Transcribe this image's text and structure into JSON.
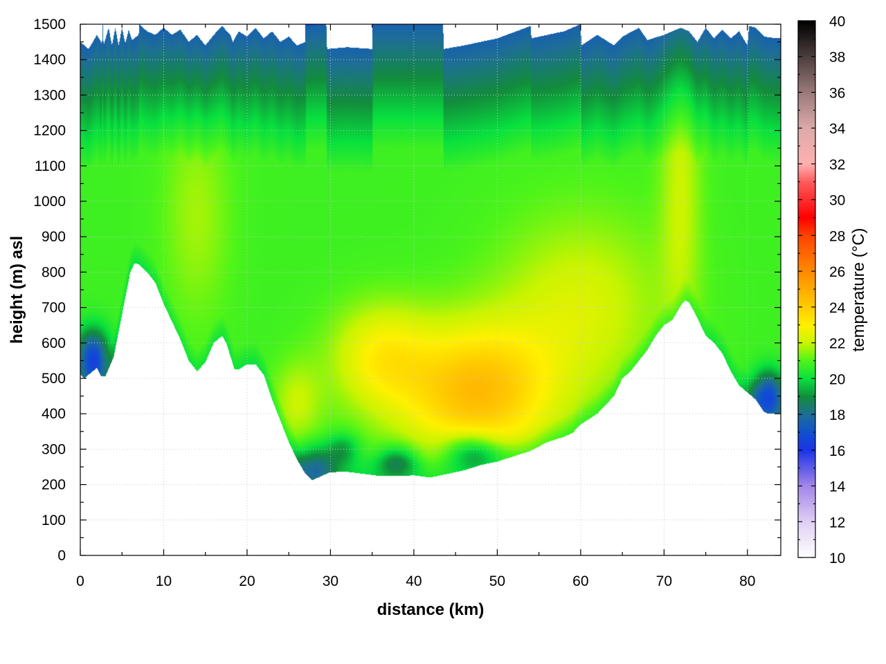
{
  "chart_data": {
    "type": "heatmap",
    "xlabel": "distance (km)",
    "ylabel": "height (m) asl",
    "colorbar_label": "temperature (°C)",
    "xlim": [
      0,
      84
    ],
    "ylim": [
      0,
      1500
    ],
    "x_ticks": [
      0,
      10,
      20,
      30,
      40,
      50,
      60,
      70,
      80
    ],
    "y_ticks": [
      0,
      100,
      200,
      300,
      400,
      500,
      600,
      700,
      800,
      900,
      1000,
      1100,
      1200,
      1300,
      1400,
      1500
    ],
    "colorbar_range": [
      10,
      40
    ],
    "colorbar_ticks": [
      10,
      12,
      14,
      16,
      18,
      20,
      22,
      24,
      26,
      28,
      30,
      32,
      34,
      36,
      38,
      40
    ],
    "colormap": [
      {
        "t": 10,
        "color": "#ffffff"
      },
      {
        "t": 12,
        "color": "#e0d0f4"
      },
      {
        "t": 14,
        "color": "#a486e8"
      },
      {
        "t": 16,
        "color": "#1c34e6"
      },
      {
        "t": 17,
        "color": "#1050d0"
      },
      {
        "t": 18,
        "color": "#1e6e96"
      },
      {
        "t": 19,
        "color": "#128c3c"
      },
      {
        "t": 20,
        "color": "#08e03e"
      },
      {
        "t": 21,
        "color": "#4cf41a"
      },
      {
        "t": 22,
        "color": "#c8f400"
      },
      {
        "t": 23,
        "color": "#fff000"
      },
      {
        "t": 24,
        "color": "#ffcc00"
      },
      {
        "t": 26,
        "color": "#ff8a00"
      },
      {
        "t": 28,
        "color": "#ff4400"
      },
      {
        "t": 29,
        "color": "#ff0000"
      },
      {
        "t": 31,
        "color": "#ff5a5a"
      },
      {
        "t": 32,
        "color": "#ffb0b0"
      },
      {
        "t": 34,
        "color": "#ddaaaa"
      },
      {
        "t": 36,
        "color": "#9a7a7a"
      },
      {
        "t": 38,
        "color": "#4e3e3e"
      },
      {
        "t": 40,
        "color": "#000000"
      }
    ],
    "terrain": [
      [
        0,
        510
      ],
      [
        0.5,
        500
      ],
      [
        1,
        510
      ],
      [
        2,
        530
      ],
      [
        2.5,
        505
      ],
      [
        3,
        505
      ],
      [
        4,
        560
      ],
      [
        5,
        680
      ],
      [
        6,
        800
      ],
      [
        6.5,
        825
      ],
      [
        7,
        822
      ],
      [
        8,
        800
      ],
      [
        9,
        770
      ],
      [
        10,
        710
      ],
      [
        11,
        660
      ],
      [
        12,
        610
      ],
      [
        13,
        550
      ],
      [
        14,
        520
      ],
      [
        15,
        545
      ],
      [
        16,
        600
      ],
      [
        17,
        620
      ],
      [
        17.5,
        600
      ],
      [
        18.5,
        525
      ],
      [
        19,
        525
      ],
      [
        20,
        540
      ],
      [
        21,
        540
      ],
      [
        22,
        510
      ],
      [
        23,
        440
      ],
      [
        24,
        380
      ],
      [
        25,
        320
      ],
      [
        26,
        270
      ],
      [
        27,
        230
      ],
      [
        27.8,
        212
      ],
      [
        29,
        225
      ],
      [
        30,
        235
      ],
      [
        32,
        236
      ],
      [
        34,
        230
      ],
      [
        36,
        224
      ],
      [
        38,
        224
      ],
      [
        40,
        226
      ],
      [
        42,
        220
      ],
      [
        44,
        230
      ],
      [
        46,
        240
      ],
      [
        48,
        255
      ],
      [
        50,
        265
      ],
      [
        52,
        280
      ],
      [
        54,
        295
      ],
      [
        56,
        320
      ],
      [
        58,
        335
      ],
      [
        59,
        345
      ],
      [
        60,
        370
      ],
      [
        62,
        400
      ],
      [
        64,
        450
      ],
      [
        65,
        500
      ],
      [
        66,
        520
      ],
      [
        68,
        580
      ],
      [
        69,
        620
      ],
      [
        70,
        650
      ],
      [
        71,
        665
      ],
      [
        72,
        705
      ],
      [
        72.5,
        720
      ],
      [
        73,
        715
      ],
      [
        74,
        670
      ],
      [
        75,
        620
      ],
      [
        76,
        600
      ],
      [
        77,
        570
      ],
      [
        78,
        520
      ],
      [
        79,
        480
      ],
      [
        80,
        460
      ],
      [
        81,
        440
      ],
      [
        82,
        405
      ],
      [
        82.5,
        400
      ],
      [
        83.5,
        400
      ]
    ],
    "top_boundary": [
      [
        0,
        1450
      ],
      [
        1,
        1430
      ],
      [
        2,
        1470
      ],
      [
        2.6,
        1445
      ],
      [
        2.7,
        1500
      ],
      [
        2.8,
        1440
      ],
      [
        3.4,
        1490
      ],
      [
        3.8,
        1440
      ],
      [
        4.2,
        1490
      ],
      [
        4.6,
        1440
      ],
      [
        5,
        1490
      ],
      [
        5.4,
        1445
      ],
      [
        5.8,
        1485
      ],
      [
        6.2,
        1455
      ],
      [
        7,
        1470
      ],
      [
        7.1,
        1500
      ],
      [
        8,
        1480
      ],
      [
        9,
        1470
      ],
      [
        10,
        1490
      ],
      [
        11,
        1470
      ],
      [
        12,
        1485
      ],
      [
        13,
        1450
      ],
      [
        14,
        1470
      ],
      [
        15,
        1440
      ],
      [
        16,
        1470
      ],
      [
        17,
        1495
      ],
      [
        18,
        1470
      ],
      [
        18.3,
        1450
      ],
      [
        19,
        1480
      ],
      [
        20,
        1465
      ],
      [
        21,
        1490
      ],
      [
        22,
        1460
      ],
      [
        23,
        1480
      ],
      [
        24,
        1450
      ],
      [
        25,
        1465
      ],
      [
        26,
        1440
      ],
      [
        27,
        1450
      ],
      [
        27.1,
        1495
      ],
      [
        29.5,
        1500
      ],
      [
        29.6,
        1430
      ],
      [
        32,
        1435
      ],
      [
        35,
        1430
      ],
      [
        35.1,
        1500
      ],
      [
        43.5,
        1500
      ],
      [
        43.6,
        1430
      ],
      [
        46,
        1440
      ],
      [
        50,
        1460
      ],
      [
        54,
        1495
      ],
      [
        54.1,
        1460
      ],
      [
        58,
        1480
      ],
      [
        60,
        1500
      ],
      [
        60.1,
        1440
      ],
      [
        62,
        1470
      ],
      [
        64,
        1440
      ],
      [
        65,
        1465
      ],
      [
        67,
        1490
      ],
      [
        68,
        1455
      ],
      [
        70,
        1470
      ],
      [
        72,
        1490
      ],
      [
        73,
        1480
      ],
      [
        74,
        1450
      ],
      [
        75,
        1490
      ],
      [
        76,
        1460
      ],
      [
        77,
        1485
      ],
      [
        78,
        1460
      ],
      [
        79,
        1480
      ],
      [
        80,
        1440
      ],
      [
        80.2,
        1495
      ],
      [
        81,
        1490
      ],
      [
        82,
        1465
      ],
      [
        83.5,
        1460
      ]
    ],
    "top_blocks": [
      {
        "x0": 27,
        "x1": 29.5,
        "temp": 16.8
      },
      {
        "x0": 35,
        "x1": 43.5,
        "temp": 16.5
      }
    ],
    "warm_cores": [
      {
        "x": 47.5,
        "y": 460,
        "rx": 9,
        "ry": 190,
        "amp": 3.6
      },
      {
        "x": 36,
        "y": 560,
        "rx": 6,
        "ry": 150,
        "amp": 2.0
      },
      {
        "x": 60,
        "y": 700,
        "rx": 10,
        "ry": 260,
        "amp": 1.5
      },
      {
        "x": 72,
        "y": 1050,
        "rx": 2.5,
        "ry": 420,
        "amp": 1.2
      },
      {
        "x": 26,
        "y": 430,
        "rx": 3,
        "ry": 120,
        "amp": 1.2
      },
      {
        "x": 14,
        "y": 960,
        "rx": 4,
        "ry": 300,
        "amp": 0.9
      }
    ],
    "cold_pools": [
      {
        "x": 1.5,
        "y": 560,
        "rx": 2.0,
        "ry": 80,
        "amp": 4.0
      },
      {
        "x": 82.5,
        "y": 450,
        "rx": 2.0,
        "ry": 70,
        "amp": 4.0
      },
      {
        "x": 28,
        "y": 250,
        "rx": 2.5,
        "ry": 60,
        "amp": 2.6
      },
      {
        "x": 47,
        "y": 290,
        "rx": 3.5,
        "ry": 55,
        "amp": 2.5
      },
      {
        "x": 38,
        "y": 265,
        "rx": 2.5,
        "ry": 45,
        "amp": 2.2
      },
      {
        "x": 31.5,
        "y": 300,
        "rx": 2.0,
        "ry": 45,
        "amp": 1.6
      }
    ]
  }
}
